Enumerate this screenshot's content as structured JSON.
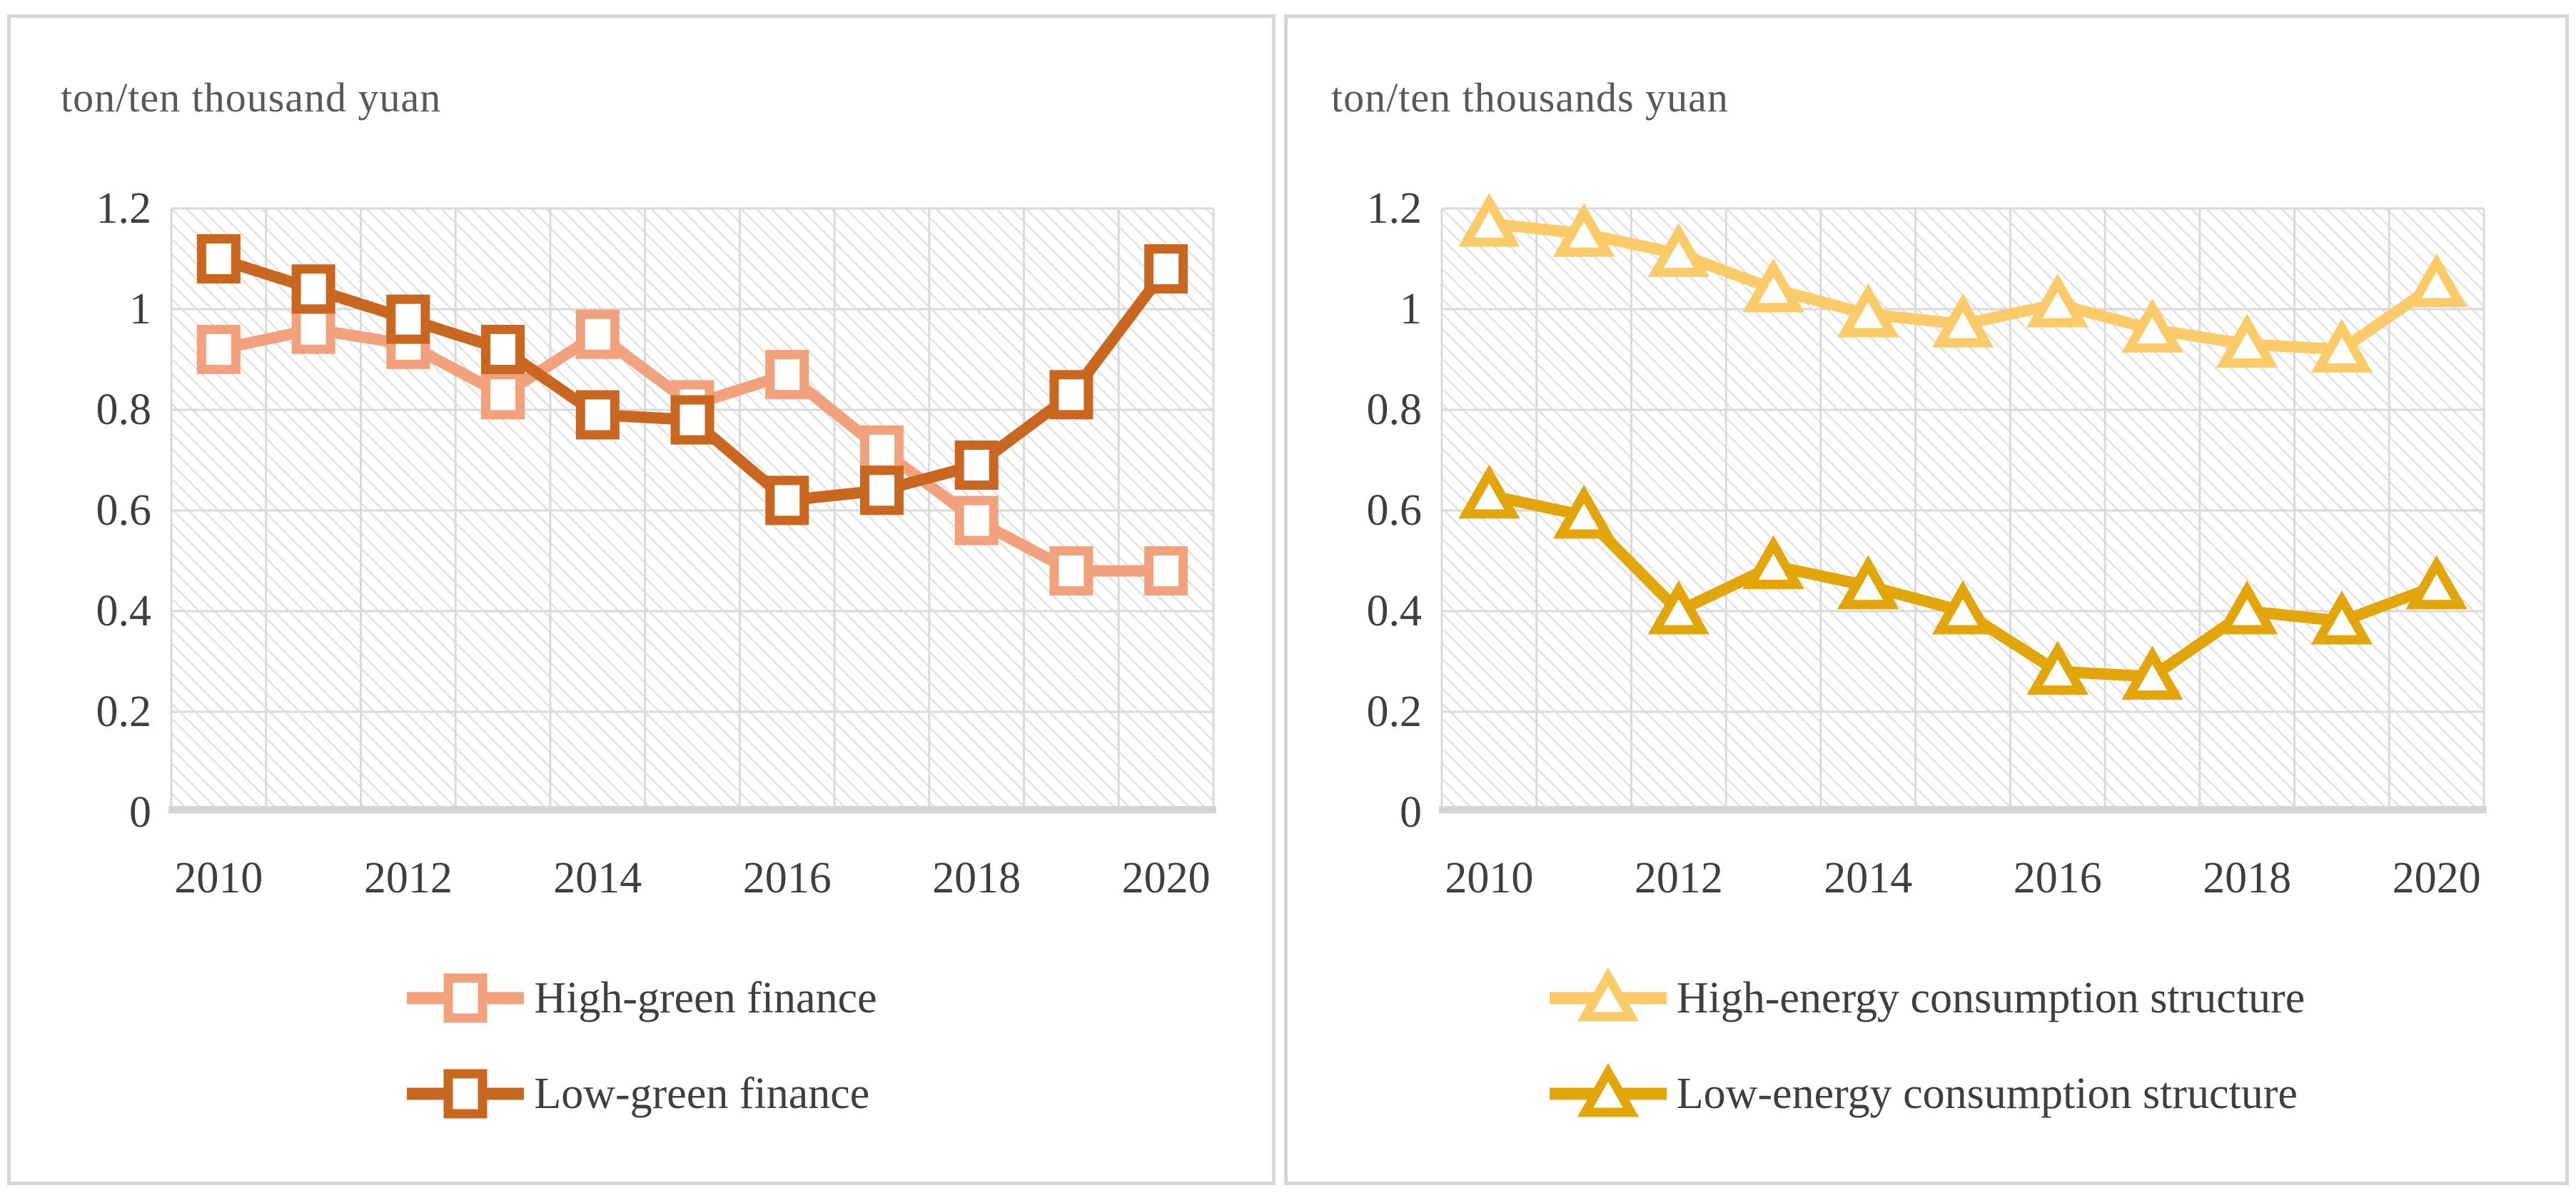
{
  "chart_data": [
    {
      "type": "line",
      "title": "ton/ten thousand yuan",
      "x": [
        2010,
        2011,
        2012,
        2013,
        2014,
        2015,
        2016,
        2017,
        2018,
        2019,
        2020
      ],
      "x_tick_labels": [
        "2010",
        "2012",
        "2014",
        "2016",
        "2018",
        "2020"
      ],
      "y_tick_labels": [
        "1.2",
        "1",
        "0.8",
        "0.6",
        "0.4",
        "0.2",
        "0"
      ],
      "ylim": [
        0,
        1.2
      ],
      "y_step": 0.2,
      "grid": true,
      "legend_position": "bottom",
      "series": [
        {
          "name": "High-green finance",
          "color": "#F1A27C",
          "marker": "square",
          "values": [
            0.92,
            0.96,
            0.93,
            0.83,
            0.95,
            0.81,
            0.87,
            0.72,
            0.58,
            0.48,
            0.48
          ]
        },
        {
          "name": "Low-green finance",
          "color": "#C9661F",
          "marker": "square",
          "values": [
            1.1,
            1.04,
            0.98,
            0.92,
            0.79,
            0.78,
            0.62,
            0.64,
            0.69,
            0.83,
            1.08
          ]
        }
      ]
    },
    {
      "type": "line",
      "title": "ton/ten thousands yuan",
      "x": [
        2010,
        2011,
        2012,
        2013,
        2014,
        2015,
        2016,
        2017,
        2018,
        2019,
        2020
      ],
      "x_tick_labels": [
        "2010",
        "2012",
        "2014",
        "2016",
        "2018",
        "2020"
      ],
      "y_tick_labels": [
        "1.2",
        "1",
        "0.8",
        "0.6",
        "0.4",
        "0.2",
        "0"
      ],
      "ylim": [
        0,
        1.2
      ],
      "y_step": 0.2,
      "grid": true,
      "legend_position": "bottom",
      "series": [
        {
          "name": "High-energy consumption structure",
          "color": "#FBCB69",
          "marker": "triangle",
          "values": [
            1.17,
            1.15,
            1.11,
            1.04,
            0.99,
            0.97,
            1.01,
            0.96,
            0.93,
            0.92,
            1.05
          ]
        },
        {
          "name": "Low-energy consumption structure",
          "color": "#E2A60A",
          "marker": "triangle",
          "values": [
            0.63,
            0.59,
            0.4,
            0.49,
            0.45,
            0.4,
            0.28,
            0.27,
            0.4,
            0.38,
            0.45
          ]
        }
      ]
    }
  ],
  "colors": {
    "gridline": "#D9D9D9",
    "axis_line": "#D4D4D4",
    "hatch_line": "#E3E3E3",
    "plot_background": "#FFFFFF",
    "title_text": "#595959",
    "tick_text": "#3F3F3F",
    "panel_border": "#D6D6D6"
  }
}
